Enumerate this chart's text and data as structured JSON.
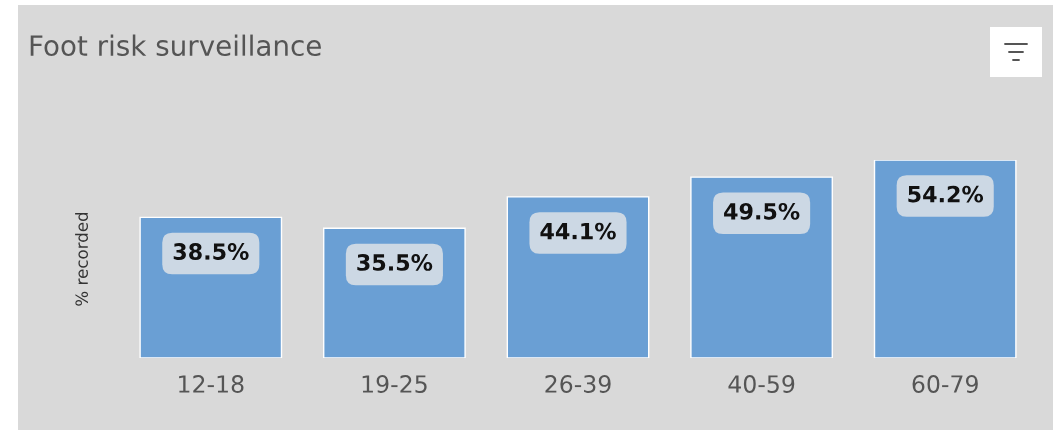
{
  "chart_data": {
    "type": "bar",
    "title": "Foot risk surveillance",
    "ylabel": "% recorded",
    "categories": [
      "12-18",
      "19-25",
      "26-39",
      "40-59",
      "60-79"
    ],
    "values": [
      38.5,
      35.5,
      44.1,
      49.5,
      54.2
    ],
    "value_labels": [
      "38.5%",
      "35.5%",
      "44.1%",
      "49.5%",
      "54.2%"
    ],
    "color": "#6a9fd4"
  }
}
